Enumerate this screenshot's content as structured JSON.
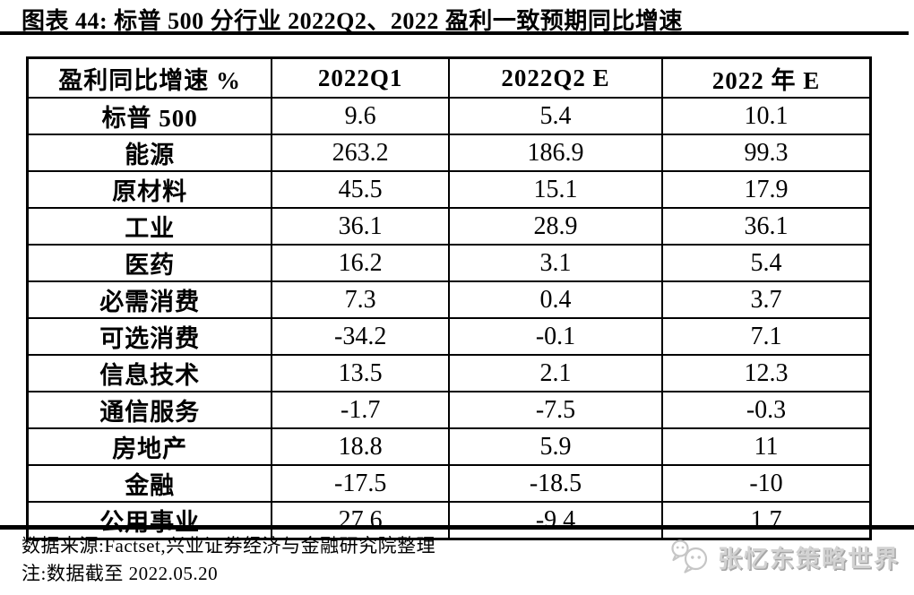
{
  "figure": {
    "title": "图表 44:  标普 500 分行业 2022Q2、2022 盈利一致预期同比增速"
  },
  "table": {
    "columns": [
      "盈利同比增速 %",
      "2022Q1",
      "2022Q2 E",
      "2022 年 E"
    ],
    "rows": [
      {
        "label": "标普 500",
        "values": [
          "9.6",
          "5.4",
          "10.1"
        ]
      },
      {
        "label": "能源",
        "values": [
          "263.2",
          "186.9",
          "99.3"
        ]
      },
      {
        "label": "原材料",
        "values": [
          "45.5",
          "15.1",
          "17.9"
        ]
      },
      {
        "label": "工业",
        "values": [
          "36.1",
          "28.9",
          "36.1"
        ]
      },
      {
        "label": "医药",
        "values": [
          "16.2",
          "3.1",
          "5.4"
        ]
      },
      {
        "label": "必需消费",
        "values": [
          "7.3",
          "0.4",
          "3.7"
        ]
      },
      {
        "label": "可选消费",
        "values": [
          "-34.2",
          "-0.1",
          "7.1"
        ]
      },
      {
        "label": "信息技术",
        "values": [
          "13.5",
          "2.1",
          "12.3"
        ]
      },
      {
        "label": "通信服务",
        "values": [
          "-1.7",
          "-7.5",
          "-0.3"
        ]
      },
      {
        "label": "房地产",
        "values": [
          "18.8",
          "5.9",
          "11"
        ]
      },
      {
        "label": "金融",
        "values": [
          "-17.5",
          "-18.5",
          "-10"
        ]
      },
      {
        "label": "公用事业",
        "values": [
          "27.6",
          "-9.4",
          "1.7"
        ]
      }
    ]
  },
  "footer": {
    "source": "数据来源:Factset,兴业证券经济与金融研究院整理",
    "note": "注:数据截至 2022.05.20",
    "watermark": "张忆东策略世界"
  },
  "colors": {
    "text": "#000000",
    "background": "#ffffff",
    "watermark": "#d2d2d2"
  },
  "chart_data": {
    "type": "table",
    "title": "图表 44:标普 500 分行业 2022Q2、2022 盈利一致预期同比增速",
    "unit": "%",
    "columns": [
      "盈利同比增速 %",
      "2022Q1",
      "2022Q2 E",
      "2022 年 E"
    ],
    "categories": [
      "标普 500",
      "能源",
      "原材料",
      "工业",
      "医药",
      "必需消费",
      "可选消费",
      "信息技术",
      "通信服务",
      "房地产",
      "金融",
      "公用事业"
    ],
    "series": [
      {
        "name": "2022Q1",
        "values": [
          9.6,
          263.2,
          45.5,
          36.1,
          16.2,
          7.3,
          -34.2,
          13.5,
          -1.7,
          18.8,
          -17.5,
          27.6
        ]
      },
      {
        "name": "2022Q2 E",
        "values": [
          5.4,
          186.9,
          15.1,
          28.9,
          3.1,
          0.4,
          -0.1,
          2.1,
          -7.5,
          5.9,
          -18.5,
          -9.4
        ]
      },
      {
        "name": "2022 年 E",
        "values": [
          10.1,
          99.3,
          17.9,
          36.1,
          5.4,
          3.7,
          7.1,
          12.3,
          -0.3,
          11,
          -10,
          1.7
        ]
      }
    ],
    "source": "数据来源:Factset,兴业证券经济与金融研究院整理",
    "note": "注:数据截至 2022.05.20"
  }
}
